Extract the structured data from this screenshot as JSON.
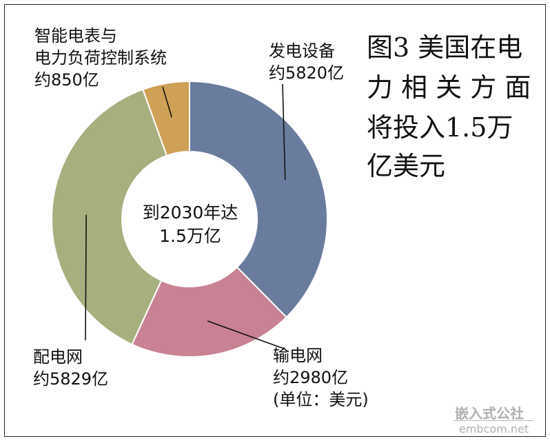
{
  "title_lines": [
    "图3 美国在电",
    "力 相 关 方 面",
    "将投入1.5万",
    "亿美元"
  ],
  "center_label": [
    "到2030年达",
    "1.5万亿"
  ],
  "chart_data": {
    "type": "pie",
    "variant": "donut",
    "start_angle_deg": 0,
    "direction": "clockwise",
    "slices": [
      {
        "key": "gen",
        "label": [
          "发电设备",
          "约5820亿"
        ],
        "value": 5820,
        "color": "#6a7c9e"
      },
      {
        "key": "trans",
        "label": [
          "输电网",
          "约2980亿",
          "(单位：美元)"
        ],
        "value": 2980,
        "color": "#c98294"
      },
      {
        "key": "dist",
        "label": [
          "配电网",
          "约5829亿"
        ],
        "value": 5829,
        "color": "#a6b07e"
      },
      {
        "key": "smart",
        "label": [
          "智能电表与",
          "电力负荷控制系统",
          "约850亿"
        ],
        "value": 850,
        "color": "#cfa156"
      }
    ],
    "total_label": "1.5万亿",
    "unit": "美元"
  },
  "watermark": {
    "cn": "嵌入式公社",
    "en": "embcom.net"
  }
}
